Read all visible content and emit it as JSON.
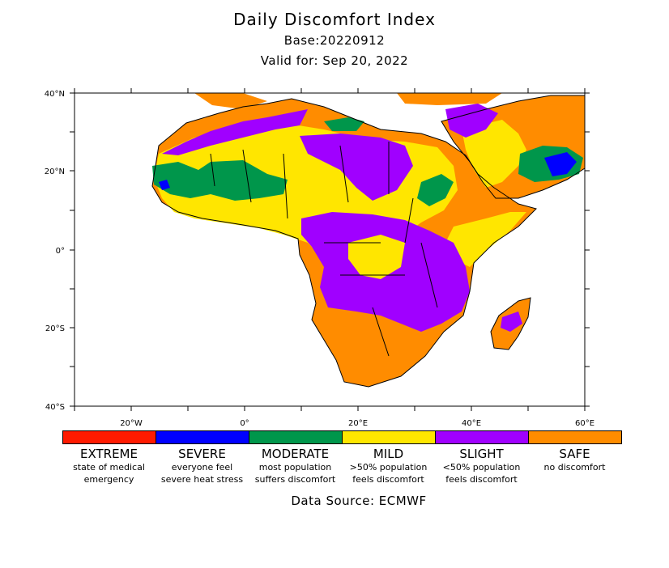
{
  "header": {
    "title": "Daily Discomfort Index",
    "base": "Base:20220912",
    "valid": "Valid for: Sep 20, 2022"
  },
  "axes": {
    "lat_labels": [
      "40°N",
      "20°N",
      "0°",
      "20°S",
      "40°S"
    ],
    "lon_labels": [
      "20°W",
      "0°",
      "20°E",
      "40°E",
      "60°E"
    ]
  },
  "map": {
    "lon_range": [
      -30,
      60
    ],
    "lat_range": [
      -40,
      40
    ],
    "region": "Africa and Arabian Peninsula"
  },
  "legend": [
    {
      "name": "EXTREME",
      "desc1": "state of medical",
      "desc2": "emergency",
      "color": "#ff1a00"
    },
    {
      "name": "SEVERE",
      "desc1": "everyone feel",
      "desc2": "severe heat stress",
      "color": "#0000ff"
    },
    {
      "name": "MODERATE",
      "desc1": "most population",
      "desc2": "suffers discomfort",
      "color": "#00964b"
    },
    {
      "name": "MILD",
      "desc1": ">50% population",
      "desc2": "feels discomfort",
      "color": "#ffe600"
    },
    {
      "name": "SLIGHT",
      "desc1": "<50% population",
      "desc2": "feels discomfort",
      "color": "#a000ff"
    },
    {
      "name": "SAFE",
      "desc1": "no discomfort",
      "desc2": "",
      "color": "#ff8c00"
    }
  ],
  "footer": {
    "source": "Data Source: ECMWF"
  }
}
